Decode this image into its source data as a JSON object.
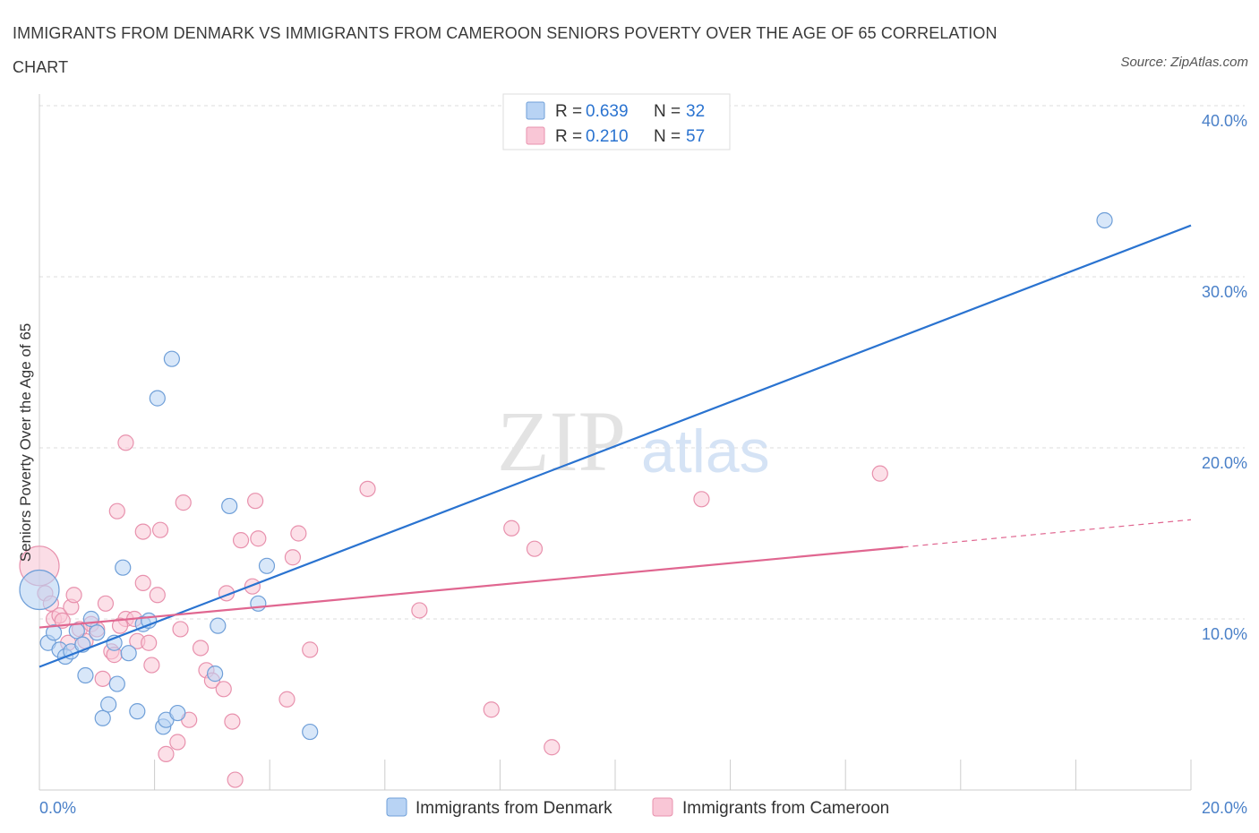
{
  "title": "IMMIGRANTS FROM DENMARK VS IMMIGRANTS FROM CAMEROON SENIORS POVERTY OVER THE AGE OF 65 CORRELATION CHART",
  "source": "Source: ZipAtlas.com",
  "watermark": {
    "zip": "ZIP",
    "atlas": "atlas"
  },
  "colors": {
    "denmark_fill": "#b8d3f4",
    "denmark_stroke": "#6f9fd8",
    "denmark_line": "#2a73d0",
    "cameroon_fill": "#f9c6d6",
    "cameroon_stroke": "#e891ad",
    "cameroon_line": "#e06690",
    "tick_blue": "#4a80c8",
    "grid": "#dddddd"
  },
  "legend": {
    "rows": [
      {
        "r_label": "R =",
        "r_value": "0.639",
        "n_label": "N =",
        "n_value": "32"
      },
      {
        "r_label": "R =",
        "r_value": "0.210",
        "n_label": "N =",
        "n_value": "57"
      }
    ]
  },
  "chart_data": {
    "type": "scatter",
    "title": "IMMIGRANTS FROM DENMARK VS IMMIGRANTS FROM CAMEROON SENIORS POVERTY OVER THE AGE OF 65 CORRELATION CHART",
    "xlabel": "",
    "ylabel": "Seniors Poverty Over the Age of 65",
    "xlim": [
      0,
      20
    ],
    "ylim": [
      0,
      40
    ],
    "x_tick_labels": [
      "0.0%",
      "20.0%"
    ],
    "y_ticks": [
      10,
      20,
      30,
      40
    ],
    "y_tick_labels": [
      "10.0%",
      "20.0%",
      "30.0%",
      "40.0%"
    ],
    "grid": true,
    "series": [
      {
        "name": "Immigrants from Denmark",
        "r": 0.639,
        "n": 32,
        "trend": {
          "x": [
            0,
            20
          ],
          "y": [
            7.2,
            33.0
          ]
        },
        "points": [
          {
            "x": 0.0,
            "y": 11.7,
            "big": true
          },
          {
            "x": 0.15,
            "y": 8.6
          },
          {
            "x": 0.25,
            "y": 9.2
          },
          {
            "x": 0.35,
            "y": 8.2
          },
          {
            "x": 0.45,
            "y": 7.8
          },
          {
            "x": 0.55,
            "y": 8.1
          },
          {
            "x": 0.65,
            "y": 9.3
          },
          {
            "x": 0.75,
            "y": 8.5
          },
          {
            "x": 0.8,
            "y": 6.7
          },
          {
            "x": 0.9,
            "y": 10.0
          },
          {
            "x": 1.0,
            "y": 9.2
          },
          {
            "x": 1.1,
            "y": 4.2
          },
          {
            "x": 1.2,
            "y": 5.0
          },
          {
            "x": 1.3,
            "y": 8.6
          },
          {
            "x": 1.35,
            "y": 6.2
          },
          {
            "x": 1.45,
            "y": 13.0
          },
          {
            "x": 1.55,
            "y": 8.0
          },
          {
            "x": 1.7,
            "y": 4.6
          },
          {
            "x": 1.8,
            "y": 9.7
          },
          {
            "x": 1.9,
            "y": 9.9
          },
          {
            "x": 2.05,
            "y": 22.9
          },
          {
            "x": 2.15,
            "y": 3.7
          },
          {
            "x": 2.2,
            "y": 4.1
          },
          {
            "x": 2.3,
            "y": 25.2
          },
          {
            "x": 2.4,
            "y": 4.5
          },
          {
            "x": 3.05,
            "y": 6.8
          },
          {
            "x": 3.1,
            "y": 9.6
          },
          {
            "x": 3.3,
            "y": 16.6
          },
          {
            "x": 3.8,
            "y": 10.9
          },
          {
            "x": 3.95,
            "y": 13.1
          },
          {
            "x": 4.7,
            "y": 3.4
          },
          {
            "x": 18.5,
            "y": 33.3
          }
        ]
      },
      {
        "name": "Immigrants from Cameroon",
        "r": 0.21,
        "n": 57,
        "trend": {
          "x": [
            0,
            15
          ],
          "y": [
            9.5,
            14.2
          ]
        },
        "trend_dashed": {
          "x": [
            15,
            20
          ],
          "y": [
            14.2,
            15.8
          ]
        },
        "points": [
          {
            "x": 0.0,
            "y": 13.1,
            "big": true
          },
          {
            "x": 0.1,
            "y": 11.5
          },
          {
            "x": 0.2,
            "y": 10.9
          },
          {
            "x": 0.25,
            "y": 10.0
          },
          {
            "x": 0.35,
            "y": 10.2
          },
          {
            "x": 0.4,
            "y": 9.9
          },
          {
            "x": 0.5,
            "y": 8.6
          },
          {
            "x": 0.55,
            "y": 10.7
          },
          {
            "x": 0.6,
            "y": 11.4
          },
          {
            "x": 0.7,
            "y": 9.4
          },
          {
            "x": 0.8,
            "y": 8.7
          },
          {
            "x": 0.9,
            "y": 9.7
          },
          {
            "x": 1.0,
            "y": 9.4
          },
          {
            "x": 1.1,
            "y": 6.5
          },
          {
            "x": 1.15,
            "y": 10.9
          },
          {
            "x": 1.25,
            "y": 8.1
          },
          {
            "x": 1.3,
            "y": 7.9
          },
          {
            "x": 1.35,
            "y": 16.3
          },
          {
            "x": 1.5,
            "y": 10.0
          },
          {
            "x": 1.5,
            "y": 20.3
          },
          {
            "x": 1.65,
            "y": 10.0
          },
          {
            "x": 1.7,
            "y": 8.7
          },
          {
            "x": 1.8,
            "y": 12.1
          },
          {
            "x": 1.8,
            "y": 15.1
          },
          {
            "x": 1.9,
            "y": 8.6
          },
          {
            "x": 1.95,
            "y": 7.3
          },
          {
            "x": 2.05,
            "y": 11.4
          },
          {
            "x": 2.1,
            "y": 15.2
          },
          {
            "x": 2.2,
            "y": 2.1
          },
          {
            "x": 2.4,
            "y": 2.8
          },
          {
            "x": 2.45,
            "y": 9.4
          },
          {
            "x": 2.5,
            "y": 16.8
          },
          {
            "x": 2.6,
            "y": 4.1
          },
          {
            "x": 2.8,
            "y": 8.3
          },
          {
            "x": 2.9,
            "y": 7.0
          },
          {
            "x": 3.0,
            "y": 6.4
          },
          {
            "x": 3.2,
            "y": 5.9
          },
          {
            "x": 3.25,
            "y": 11.5
          },
          {
            "x": 3.35,
            "y": 4.0
          },
          {
            "x": 3.4,
            "y": 0.6
          },
          {
            "x": 3.5,
            "y": 14.6
          },
          {
            "x": 3.7,
            "y": 11.9
          },
          {
            "x": 3.75,
            "y": 16.9
          },
          {
            "x": 3.8,
            "y": 14.7
          },
          {
            "x": 4.3,
            "y": 5.3
          },
          {
            "x": 4.4,
            "y": 13.6
          },
          {
            "x": 4.5,
            "y": 15.0
          },
          {
            "x": 4.7,
            "y": 8.2
          },
          {
            "x": 5.7,
            "y": 17.6
          },
          {
            "x": 6.6,
            "y": 10.5
          },
          {
            "x": 7.85,
            "y": 4.7
          },
          {
            "x": 8.2,
            "y": 15.3
          },
          {
            "x": 8.6,
            "y": 14.1
          },
          {
            "x": 8.9,
            "y": 2.5
          },
          {
            "x": 11.5,
            "y": 17.0
          },
          {
            "x": 14.6,
            "y": 18.5
          },
          {
            "x": 1.4,
            "y": 9.6
          }
        ]
      }
    ]
  }
}
